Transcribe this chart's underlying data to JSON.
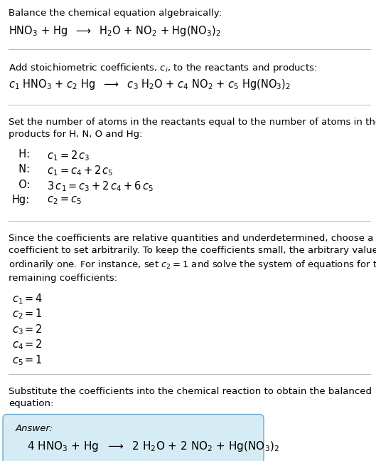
{
  "bg_color": "#ffffff",
  "text_color": "#000000",
  "box_facecolor": "#d6ecf5",
  "box_edgecolor": "#6aaacb",
  "fig_width": 5.29,
  "fig_height": 6.47,
  "dpi": 100,
  "section1_title": "Balance the chemical equation algebraically:",
  "section1_eq": "HNO$_3$ + Hg  $\\longrightarrow$  H$_2$O + NO$_2$ + Hg(NO$_3$)$_2$",
  "section2_title": "Add stoichiometric coefficients, $c_i$, to the reactants and products:",
  "section2_eq": "$c_1$ HNO$_3$ + $c_2$ Hg  $\\longrightarrow$  $c_3$ H$_2$O + $c_4$ NO$_2$ + $c_5$ Hg(NO$_3$)$_2$",
  "section3_intro": "Set the number of atoms in the reactants equal to the number of atoms in the\nproducts for H, N, O and Hg:",
  "section3_lines": [
    [
      "  H:",
      "  $c_1 = 2\\,c_3$"
    ],
    [
      "  N:",
      "  $c_1 = c_4 + 2\\,c_5$"
    ],
    [
      "  O:",
      "  $3\\,c_1 = c_3 + 2\\,c_4 + 6\\,c_5$"
    ],
    [
      "Hg:",
      "  $c_2 = c_5$"
    ]
  ],
  "section4_intro": "Since the coefficients are relative quantities and underdetermined, choose a\ncoefficient to set arbitrarily. To keep the coefficients small, the arbitrary value is\nordinarily one. For instance, set $c_2 = 1$ and solve the system of equations for the\nremaining coefficients:",
  "section4_lines": [
    "$c_1 = 4$",
    "$c_2 = 1$",
    "$c_3 = 2$",
    "$c_4 = 2$",
    "$c_5 = 1$"
  ],
  "section5_intro": "Substitute the coefficients into the chemical reaction to obtain the balanced\nequation:",
  "answer_label": "Answer:",
  "answer_eq": "4 HNO$_3$ + Hg  $\\longrightarrow$  2 H$_2$O + 2 NO$_2$ + Hg(NO$_3$)$_2$",
  "fs_body": 9.5,
  "fs_eq": 10.5,
  "line_color": "#bbbbbb"
}
